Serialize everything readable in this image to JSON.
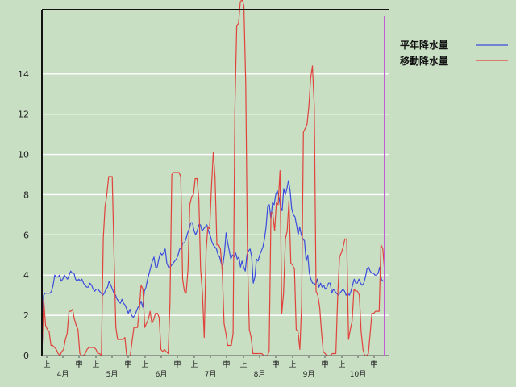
{
  "chart_data": {
    "type": "line",
    "ylim": [
      0,
      17.2
    ],
    "y_ticks": [
      0,
      2,
      4,
      6,
      8,
      10,
      12,
      14
    ],
    "grid": "horizontal",
    "legend_position": "top-right",
    "x_sub_labels": [
      "上",
      "中",
      "下",
      "上",
      "中",
      "下",
      "上",
      "中",
      "下",
      "上",
      "中",
      "下",
      "上",
      "中",
      "下",
      "上",
      "中",
      "下",
      "上",
      "中",
      "下"
    ],
    "x_month_labels": [
      "4月",
      "5月",
      "6月",
      "7月",
      "8月",
      "9月",
      "10月"
    ],
    "series": [
      {
        "name": "平年降水量",
        "color": "#3c4bdc",
        "values": [
          0,
          3,
          3.1,
          3.1,
          3.1,
          3.1,
          3.2,
          3.5,
          4,
          3.9,
          3.9,
          4,
          3.7,
          3.8,
          4,
          3.9,
          3.8,
          4,
          4.2,
          4.1,
          4.1,
          3.8,
          3.7,
          3.8,
          3.7,
          3.8,
          3.6,
          3.5,
          3.4,
          3.4,
          3.6,
          3.5,
          3.3,
          3.2,
          3.3,
          3.3,
          3.2,
          3.1,
          3,
          3.1,
          3.3,
          3.4,
          3.7,
          3.5,
          3.3,
          3.1,
          3,
          2.8,
          2.7,
          2.6,
          2.8,
          2.6,
          2.5,
          2.3,
          2.1,
          2.3,
          2,
          1.9,
          2,
          2.2,
          2.4,
          2.5,
          2.7,
          2.4,
          3.2,
          3.4,
          3.8,
          4.1,
          4.4,
          4.7,
          4.9,
          4.4,
          4.4,
          4.8,
          5.1,
          5,
          5.1,
          5.3,
          4.6,
          4.4,
          4.4,
          4.5,
          4.6,
          4.7,
          4.8,
          5,
          5.3,
          5.3,
          5.6,
          5.6,
          5.8,
          6.1,
          6.3,
          6.6,
          6.6,
          6.2,
          6,
          6.2,
          6.5,
          6.5,
          6.2,
          6.3,
          6.4,
          6.5,
          6.2,
          6,
          5.7,
          5.5,
          5.4,
          5.3,
          5,
          4.9,
          4.6,
          4.5,
          5.1,
          6.1,
          5.6,
          5.2,
          4.8,
          5,
          4.9,
          5.1,
          4.8,
          4.9,
          4.4,
          4.7,
          4.4,
          4.2,
          5,
          5.2,
          5.3,
          4.9,
          3.6,
          3.9,
          4.8,
          4.7,
          5,
          5.2,
          5.4,
          5.8,
          6.4,
          7.4,
          7.5,
          6.8,
          7.6,
          7.5,
          8,
          8.2,
          7.9,
          7.4,
          7.2,
          8.3,
          8,
          8.3,
          8.7,
          8.2,
          7.3,
          7,
          6.9,
          6.5,
          6,
          6.4,
          6,
          5.8,
          5.7,
          4.7,
          5,
          4.1,
          3.8,
          3.6,
          3.6,
          3.5,
          3.8,
          3.4,
          3.6,
          3.4,
          3.5,
          3.3,
          3.4,
          3.6,
          3.6,
          3.1,
          3.3,
          3.2,
          3.1,
          3,
          3.1,
          3.2,
          3.3,
          3.2,
          3,
          3.1,
          3,
          3.2,
          3.5,
          3.8,
          3.6,
          3.6,
          3.8,
          3.6,
          3.5,
          3.6,
          3.9,
          4.3,
          4.4,
          4.2,
          4.1,
          4.1,
          4,
          4,
          4.1,
          4.4,
          3.8,
          3.7,
          3.7
        ]
      },
      {
        "name": "移動降水量",
        "color": "#e0433c",
        "values": [
          0,
          2.8,
          1.5,
          1.3,
          1.2,
          0.5,
          0.5,
          0.4,
          0.3,
          0.1,
          0,
          0.2,
          0.3,
          0.8,
          1.1,
          2.2,
          2.2,
          2.3,
          1.8,
          1.5,
          1.3,
          0.1,
          0,
          0,
          0.1,
          0.3,
          0.4,
          0.4,
          0.4,
          0.4,
          0.3,
          0.1,
          0.1,
          0,
          5.8,
          7.4,
          8,
          8.9,
          8.9,
          8.9,
          4.9,
          1.4,
          0.8,
          0.8,
          0.8,
          0.8,
          0.9,
          0,
          0,
          0,
          0.7,
          1.4,
          1.4,
          1.4,
          2.3,
          3.5,
          3.3,
          1.4,
          1.6,
          1.8,
          2.2,
          1.6,
          1.8,
          2.1,
          2.1,
          1.9,
          0.3,
          0.2,
          0.3,
          0.2,
          0.1,
          2.6,
          9,
          9.1,
          9.1,
          9.1,
          9.1,
          8.9,
          3.8,
          3.2,
          3.1,
          4.3,
          7.5,
          7.9,
          8,
          8.8,
          8.8,
          7.8,
          4.3,
          3.1,
          0.9,
          5.2,
          6.4,
          6.3,
          8.4,
          10.1,
          8.9,
          5.5,
          5.5,
          5.3,
          4.2,
          1.6,
          1.1,
          0.5,
          0.5,
          0.5,
          1.1,
          12.2,
          16.4,
          16.5,
          17.6,
          17.7,
          17.4,
          13.5,
          4.8,
          1.3,
          0.9,
          0.1,
          0.1,
          0.1,
          0.1,
          0.1,
          0.1,
          0,
          0,
          0,
          0.2,
          7.1,
          7.1,
          6.2,
          7.6,
          7.5,
          9.2,
          2.1,
          3.1,
          5.8,
          6.2,
          7.7,
          4.6,
          4.5,
          4.3,
          1.3,
          1.2,
          0.3,
          2.5,
          11.1,
          11.3,
          11.5,
          12.4,
          13.8,
          14.4,
          12.4,
          3.2,
          3,
          2.4,
          1.2,
          0.2,
          0.1,
          0,
          0,
          0,
          0.1,
          0.1,
          0.1,
          2.9,
          4.9,
          5.1,
          5.4,
          5.8,
          5.8,
          0.8,
          1.3,
          1.7,
          3.3,
          3.2,
          3.2,
          3,
          1.2,
          0.3,
          0,
          0,
          0.1,
          1.1,
          2.1,
          2.1,
          2.2,
          2.2,
          2.2,
          5.5,
          5.3,
          4.2
        ]
      }
    ]
  }
}
